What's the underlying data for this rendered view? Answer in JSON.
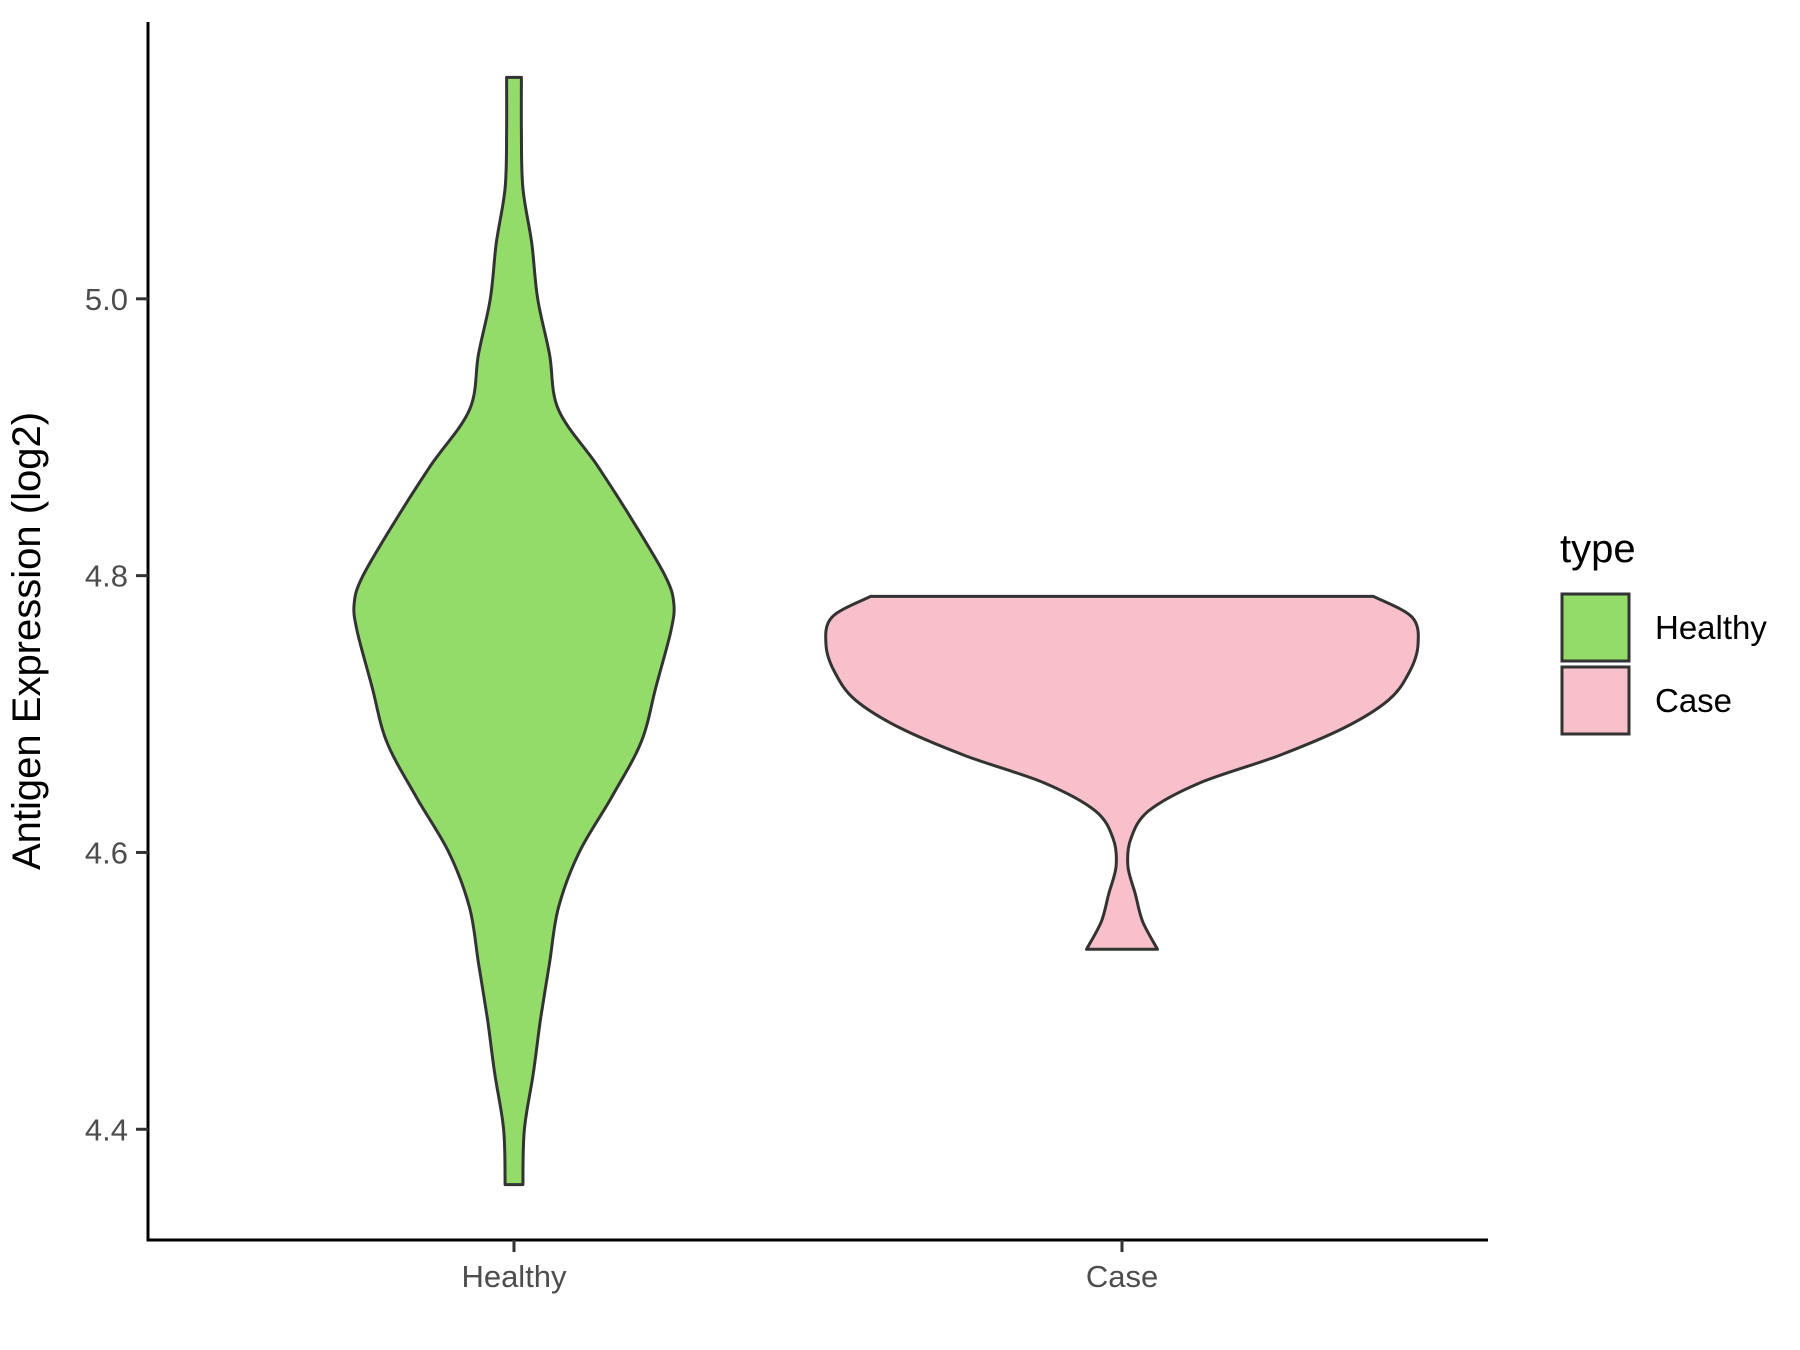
{
  "chart_data": {
    "type": "violin",
    "ylabel": "Antigen Expression (log2)",
    "xlabel": "",
    "ylim": [
      4.32,
      5.2
    ],
    "yticks": [
      4.4,
      4.6,
      4.8,
      5.0
    ],
    "ytick_labels": [
      "4.4",
      "4.6",
      "4.8",
      "5.0"
    ],
    "categories": [
      "Healthy",
      "Case"
    ],
    "grid": false,
    "legend": {
      "title": "type",
      "position": "right",
      "entries": [
        {
          "label": "Healthy",
          "color": "#93dc6a"
        },
        {
          "label": "Case",
          "color": "#f7c0cb"
        }
      ]
    },
    "series": [
      {
        "name": "Healthy",
        "color": "#93dc6a",
        "range": [
          4.36,
          5.16
        ],
        "density": [
          [
            4.36,
            0.03
          ],
          [
            4.4,
            0.035
          ],
          [
            4.44,
            0.065
          ],
          [
            4.48,
            0.09
          ],
          [
            4.52,
            0.12
          ],
          [
            4.56,
            0.15
          ],
          [
            4.6,
            0.22
          ],
          [
            4.64,
            0.33
          ],
          [
            4.68,
            0.43
          ],
          [
            4.72,
            0.48
          ],
          [
            4.76,
            0.53
          ],
          [
            4.78,
            0.54
          ],
          [
            4.8,
            0.51
          ],
          [
            4.84,
            0.4
          ],
          [
            4.88,
            0.28
          ],
          [
            4.92,
            0.15
          ],
          [
            4.96,
            0.12
          ],
          [
            5.0,
            0.08
          ],
          [
            5.04,
            0.06
          ],
          [
            5.08,
            0.03
          ],
          [
            5.12,
            0.025
          ],
          [
            5.16,
            0.025
          ]
        ]
      },
      {
        "name": "Case",
        "color": "#f7c0cb",
        "range": [
          4.53,
          4.785
        ],
        "density": [
          [
            4.53,
            0.12
          ],
          [
            4.55,
            0.07
          ],
          [
            4.57,
            0.045
          ],
          [
            4.59,
            0.02
          ],
          [
            4.61,
            0.03
          ],
          [
            4.63,
            0.09
          ],
          [
            4.65,
            0.26
          ],
          [
            4.67,
            0.53
          ],
          [
            4.69,
            0.75
          ],
          [
            4.71,
            0.9
          ],
          [
            4.73,
            0.97
          ],
          [
            4.75,
            1.0
          ],
          [
            4.77,
            0.98
          ],
          [
            4.785,
            0.85
          ]
        ]
      }
    ]
  }
}
